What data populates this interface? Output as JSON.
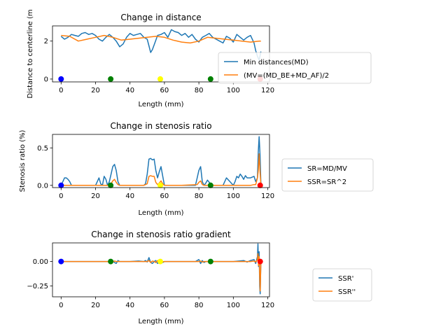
{
  "chart_data": [
    {
      "type": "line",
      "title": "Change in distance",
      "xlabel": "Length (mm)",
      "ylabel": "Distance to centerline (m",
      "xlim": [
        -5,
        121
      ],
      "ylim": [
        -0.15,
        2.8
      ],
      "xticks": [
        0,
        20,
        40,
        60,
        80,
        100,
        120
      ],
      "yticks": [
        0,
        2
      ],
      "ytick_labels": [
        "0",
        "2"
      ],
      "legend_position": "right",
      "series": [
        {
          "name": "Min distances(MD)",
          "color": "#1f77b4",
          "x": [
            0,
            2,
            4,
            6,
            8,
            10,
            12,
            14,
            16,
            18,
            20,
            22,
            24,
            26,
            28,
            30,
            32,
            34,
            36,
            38,
            40,
            42,
            44,
            46,
            48,
            50,
            51,
            52,
            53,
            54,
            56,
            58,
            60,
            62,
            64,
            66,
            68,
            70,
            72,
            74,
            76,
            78,
            80,
            82,
            84,
            86,
            88,
            90,
            92,
            94,
            96,
            98,
            100,
            102,
            104,
            106,
            108,
            110,
            112,
            113,
            114,
            115,
            116
          ],
          "y": [
            2.25,
            2.1,
            2.2,
            2.35,
            2.3,
            2.25,
            2.4,
            2.45,
            2.35,
            2.4,
            2.3,
            2.1,
            2.0,
            2.2,
            2.35,
            2.2,
            2.0,
            1.7,
            1.85,
            2.2,
            2.4,
            2.3,
            2.35,
            2.4,
            2.2,
            2.1,
            1.75,
            1.4,
            1.55,
            1.8,
            2.3,
            2.35,
            2.45,
            2.2,
            2.6,
            2.5,
            2.45,
            2.3,
            2.4,
            2.2,
            2.35,
            2.1,
            1.95,
            2.2,
            2.3,
            2.4,
            2.2,
            2.1,
            2.0,
            1.9,
            2.25,
            2.15,
            1.95,
            2.35,
            2.2,
            2.05,
            2.2,
            2.3,
            1.9,
            1.5,
            1.2,
            1.0,
            1.45
          ]
        },
        {
          "name": "(MV=(MD_BE+MD_AF)/2",
          "color": "#ff7f0e",
          "x": [
            0,
            5,
            10,
            15,
            20,
            25,
            30,
            35,
            40,
            45,
            50,
            55,
            60,
            65,
            70,
            75,
            80,
            85,
            90,
            95,
            100,
            105,
            110,
            115,
            116
          ],
          "y": [
            2.3,
            2.25,
            2.0,
            2.1,
            2.2,
            2.3,
            2.2,
            2.05,
            2.1,
            2.15,
            2.2,
            2.25,
            2.2,
            2.05,
            1.95,
            1.9,
            2.0,
            2.2,
            2.15,
            2.1,
            2.05,
            2.0,
            1.95,
            2.0,
            2.0
          ]
        }
      ],
      "markers": [
        {
          "x": 0,
          "y": 0,
          "color": "#0000ff"
        },
        {
          "x": 28.8,
          "y": 0,
          "color": "#008000"
        },
        {
          "x": 57.6,
          "y": 0,
          "color": "#ffff00"
        },
        {
          "x": 86.8,
          "y": 0,
          "color": "#008000"
        },
        {
          "x": 115.6,
          "y": 0,
          "color": "#ff0000"
        }
      ]
    },
    {
      "type": "line",
      "title": "Change in stenosis ratio",
      "xlabel": "Length (mm)",
      "ylabel": "Stenosis ratio (%)",
      "xlim": [
        -5,
        121
      ],
      "ylim": [
        -0.03,
        0.68
      ],
      "xticks": [
        0,
        20,
        40,
        60,
        80,
        100,
        120
      ],
      "yticks": [
        0,
        0.5
      ],
      "ytick_labels": [
        "0.0",
        "0.5"
      ],
      "legend_position": "right",
      "series": [
        {
          "name": "SR=MD/MV",
          "color": "#1f77b4",
          "x": [
            0,
            1,
            2,
            3,
            4,
            5,
            6,
            8,
            10,
            12,
            14,
            16,
            18,
            20,
            21,
            22,
            23,
            24,
            25,
            26,
            27,
            28,
            29,
            30,
            31,
            32,
            33,
            34,
            35,
            36,
            38,
            40,
            42,
            44,
            46,
            48,
            49,
            50,
            51,
            52,
            53,
            54,
            55,
            56,
            57,
            58,
            59,
            60,
            62,
            64,
            66,
            68,
            70,
            72,
            74,
            76,
            78,
            79,
            80,
            81,
            82,
            83,
            84,
            85,
            86,
            87,
            88,
            89,
            90,
            92,
            94,
            96,
            98,
            100,
            101,
            102,
            103,
            104,
            105,
            106,
            107,
            108,
            110,
            112,
            113,
            114,
            114.5,
            115,
            115.5,
            116
          ],
          "y": [
            0,
            0.05,
            0.1,
            0.1,
            0.08,
            0.05,
            0,
            0,
            0,
            0,
            0,
            0,
            0,
            0,
            0.05,
            0.1,
            0.02,
            0,
            0.12,
            0.08,
            0,
            0.05,
            0.15,
            0.25,
            0.28,
            0.2,
            0.05,
            0,
            0,
            0,
            0,
            0,
            0,
            0,
            0,
            0,
            0.02,
            0.15,
            0.35,
            0.36,
            0.34,
            0.35,
            0.2,
            0.1,
            0.18,
            0.25,
            0.12,
            0,
            0,
            0,
            0,
            0,
            0,
            0,
            0,
            0,
            0,
            0.1,
            0.2,
            0.25,
            0.05,
            0,
            0.03,
            0.07,
            0.04,
            0.02,
            0,
            0,
            0,
            0,
            0,
            0.1,
            0.05,
            0,
            0.05,
            0.12,
            0.1,
            0.15,
            0.12,
            0.08,
            0.13,
            0.1,
            0.1,
            0.12,
            0.05,
            0.1,
            0.45,
            0.65,
            0.4,
            0.02
          ]
        },
        {
          "name": "SSR=SR^2",
          "color": "#ff7f0e",
          "x": [
            0,
            10,
            20,
            25,
            28,
            29,
            30,
            31,
            32,
            33,
            34,
            40,
            48,
            50,
            51,
            52,
            53,
            54,
            55,
            56,
            57,
            58,
            59,
            60,
            70,
            79,
            80,
            81,
            82,
            83,
            84,
            85,
            86,
            90,
            100,
            110,
            112,
            113,
            114,
            114.5,
            115,
            115.5,
            116
          ],
          "y": [
            0,
            0,
            0,
            0,
            0,
            0.02,
            0.06,
            0.08,
            0.04,
            0.01,
            0,
            0,
            0,
            0.02,
            0.12,
            0.13,
            0.12,
            0.12,
            0.04,
            0.01,
            0.03,
            0.06,
            0.02,
            0,
            0,
            0.01,
            0.04,
            0.06,
            0.01,
            0,
            0,
            0,
            0,
            0,
            0,
            0,
            0.01,
            0.01,
            0.1,
            0.2,
            0.42,
            0.18,
            0.01
          ]
        }
      ],
      "markers": [
        {
          "x": 0,
          "y": 0,
          "color": "#0000ff"
        },
        {
          "x": 28.8,
          "y": 0,
          "color": "#008000"
        },
        {
          "x": 57.6,
          "y": 0,
          "color": "#ffff00"
        },
        {
          "x": 86.8,
          "y": 0,
          "color": "#008000"
        },
        {
          "x": 115.6,
          "y": 0,
          "color": "#ff0000"
        }
      ]
    },
    {
      "type": "line",
      "title": "Change in stenosis ratio gradient",
      "xlabel": "Length (mm)",
      "ylabel": "",
      "xlim": [
        -5,
        121
      ],
      "ylim": [
        -0.36,
        0.19
      ],
      "xticks": [
        0,
        20,
        40,
        60,
        80,
        100,
        120
      ],
      "yticks": [
        0,
        -0.25
      ],
      "ytick_labels": [
        "0.00",
        "−0.25"
      ],
      "legend_position": "lower right, outside",
      "series": [
        {
          "name": "SSR'",
          "color": "#1f77b4",
          "x": [
            0,
            20,
            25,
            28,
            29,
            30,
            31,
            32,
            33,
            34,
            40,
            45,
            48,
            49,
            50,
            51,
            52,
            53,
            54,
            55,
            56,
            57,
            58,
            59,
            60,
            70,
            78,
            80,
            81,
            82,
            83,
            84,
            90,
            100,
            106,
            108,
            110,
            112,
            113,
            114,
            114.3,
            114.6,
            115,
            115.3,
            115.6,
            116
          ],
          "y": [
            0,
            0,
            0,
            0,
            0.005,
            0.01,
            -0.01,
            -0.02,
            0.01,
            0,
            0,
            0.005,
            0,
            0.01,
            -0.005,
            0.04,
            -0.01,
            -0.02,
            0,
            0.01,
            -0.02,
            -0.01,
            0.02,
            -0.01,
            0,
            0,
            0,
            0.02,
            -0.02,
            0.01,
            -0.01,
            0,
            0,
            0,
            0.01,
            -0.005,
            0.01,
            0.02,
            -0.02,
            0.05,
            0.18,
            -0.05,
            0.1,
            -0.25,
            -0.33,
            0
          ]
        },
        {
          "name": "SSR''",
          "color": "#ff7f0e",
          "x": [
            0,
            20,
            28,
            29,
            30,
            31,
            32,
            40,
            50,
            51,
            52,
            53,
            54,
            55,
            56,
            57,
            58,
            60,
            80,
            81,
            82,
            83,
            90,
            110,
            112,
            113,
            114,
            114.3,
            114.6,
            115,
            115.3,
            115.6,
            116
          ],
          "y": [
            0,
            0,
            0,
            0.005,
            -0.005,
            0.005,
            0,
            0,
            0,
            0.01,
            -0.01,
            0.005,
            0,
            -0.01,
            0.01,
            0.005,
            -0.005,
            0,
            0,
            0.005,
            -0.005,
            0,
            0,
            0,
            0.005,
            -0.005,
            0.02,
            0.08,
            -0.04,
            0.05,
            -0.15,
            -0.3,
            0
          ]
        }
      ],
      "markers": [
        {
          "x": 0,
          "y": 0,
          "color": "#0000ff"
        },
        {
          "x": 28.8,
          "y": 0,
          "color": "#008000"
        },
        {
          "x": 57.6,
          "y": 0,
          "color": "#ffff00"
        },
        {
          "x": 86.8,
          "y": 0,
          "color": "#008000"
        },
        {
          "x": 115.6,
          "y": 0,
          "color": "#ff0000"
        }
      ]
    }
  ]
}
